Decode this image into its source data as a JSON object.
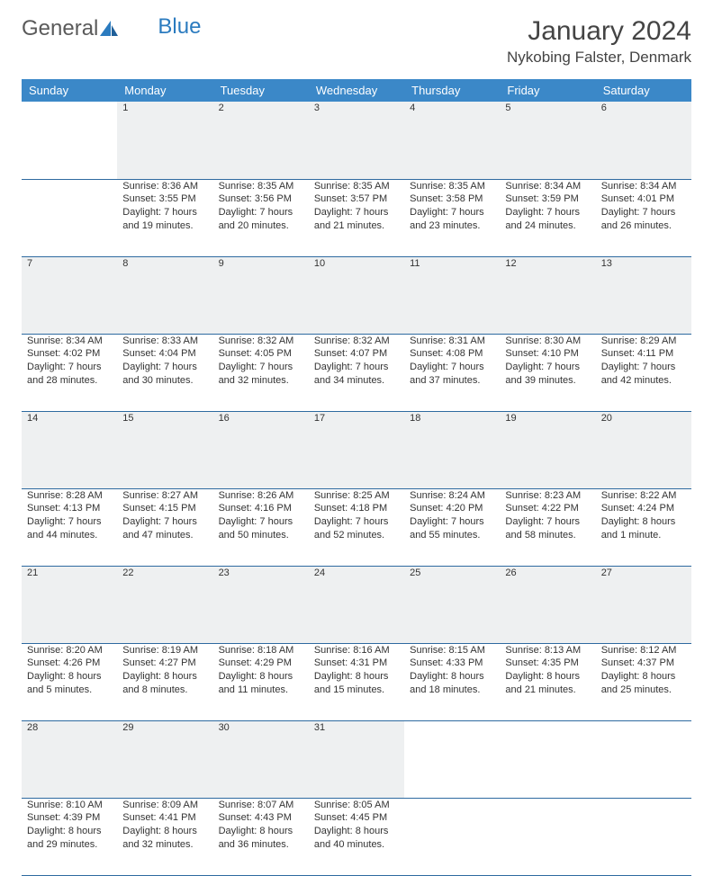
{
  "logo": {
    "text1": "General",
    "text2": "Blue"
  },
  "title": "January 2024",
  "subtitle": "Nykobing Falster, Denmark",
  "weekdays": [
    "Sunday",
    "Monday",
    "Tuesday",
    "Wednesday",
    "Thursday",
    "Friday",
    "Saturday"
  ],
  "colors": {
    "header_bg": "#3b88c8",
    "header_text": "#ffffff",
    "daynum_bg": "#eef0f1",
    "daynum_text": "#6a6a6a",
    "row_border": "#2e6aa0",
    "body_text": "#333333",
    "logo_gray": "#5a5a5a",
    "logo_blue": "#2b7bbf"
  },
  "weeks": [
    [
      null,
      {
        "n": "1",
        "sr": "8:36 AM",
        "ss": "3:55 PM",
        "dl": "7 hours and 19 minutes."
      },
      {
        "n": "2",
        "sr": "8:35 AM",
        "ss": "3:56 PM",
        "dl": "7 hours and 20 minutes."
      },
      {
        "n": "3",
        "sr": "8:35 AM",
        "ss": "3:57 PM",
        "dl": "7 hours and 21 minutes."
      },
      {
        "n": "4",
        "sr": "8:35 AM",
        "ss": "3:58 PM",
        "dl": "7 hours and 23 minutes."
      },
      {
        "n": "5",
        "sr": "8:34 AM",
        "ss": "3:59 PM",
        "dl": "7 hours and 24 minutes."
      },
      {
        "n": "6",
        "sr": "8:34 AM",
        "ss": "4:01 PM",
        "dl": "7 hours and 26 minutes."
      }
    ],
    [
      {
        "n": "7",
        "sr": "8:34 AM",
        "ss": "4:02 PM",
        "dl": "7 hours and 28 minutes."
      },
      {
        "n": "8",
        "sr": "8:33 AM",
        "ss": "4:04 PM",
        "dl": "7 hours and 30 minutes."
      },
      {
        "n": "9",
        "sr": "8:32 AM",
        "ss": "4:05 PM",
        "dl": "7 hours and 32 minutes."
      },
      {
        "n": "10",
        "sr": "8:32 AM",
        "ss": "4:07 PM",
        "dl": "7 hours and 34 minutes."
      },
      {
        "n": "11",
        "sr": "8:31 AM",
        "ss": "4:08 PM",
        "dl": "7 hours and 37 minutes."
      },
      {
        "n": "12",
        "sr": "8:30 AM",
        "ss": "4:10 PM",
        "dl": "7 hours and 39 minutes."
      },
      {
        "n": "13",
        "sr": "8:29 AM",
        "ss": "4:11 PM",
        "dl": "7 hours and 42 minutes."
      }
    ],
    [
      {
        "n": "14",
        "sr": "8:28 AM",
        "ss": "4:13 PM",
        "dl": "7 hours and 44 minutes."
      },
      {
        "n": "15",
        "sr": "8:27 AM",
        "ss": "4:15 PM",
        "dl": "7 hours and 47 minutes."
      },
      {
        "n": "16",
        "sr": "8:26 AM",
        "ss": "4:16 PM",
        "dl": "7 hours and 50 minutes."
      },
      {
        "n": "17",
        "sr": "8:25 AM",
        "ss": "4:18 PM",
        "dl": "7 hours and 52 minutes."
      },
      {
        "n": "18",
        "sr": "8:24 AM",
        "ss": "4:20 PM",
        "dl": "7 hours and 55 minutes."
      },
      {
        "n": "19",
        "sr": "8:23 AM",
        "ss": "4:22 PM",
        "dl": "7 hours and 58 minutes."
      },
      {
        "n": "20",
        "sr": "8:22 AM",
        "ss": "4:24 PM",
        "dl": "8 hours and 1 minute."
      }
    ],
    [
      {
        "n": "21",
        "sr": "8:20 AM",
        "ss": "4:26 PM",
        "dl": "8 hours and 5 minutes."
      },
      {
        "n": "22",
        "sr": "8:19 AM",
        "ss": "4:27 PM",
        "dl": "8 hours and 8 minutes."
      },
      {
        "n": "23",
        "sr": "8:18 AM",
        "ss": "4:29 PM",
        "dl": "8 hours and 11 minutes."
      },
      {
        "n": "24",
        "sr": "8:16 AM",
        "ss": "4:31 PM",
        "dl": "8 hours and 15 minutes."
      },
      {
        "n": "25",
        "sr": "8:15 AM",
        "ss": "4:33 PM",
        "dl": "8 hours and 18 minutes."
      },
      {
        "n": "26",
        "sr": "8:13 AM",
        "ss": "4:35 PM",
        "dl": "8 hours and 21 minutes."
      },
      {
        "n": "27",
        "sr": "8:12 AM",
        "ss": "4:37 PM",
        "dl": "8 hours and 25 minutes."
      }
    ],
    [
      {
        "n": "28",
        "sr": "8:10 AM",
        "ss": "4:39 PM",
        "dl": "8 hours and 29 minutes."
      },
      {
        "n": "29",
        "sr": "8:09 AM",
        "ss": "4:41 PM",
        "dl": "8 hours and 32 minutes."
      },
      {
        "n": "30",
        "sr": "8:07 AM",
        "ss": "4:43 PM",
        "dl": "8 hours and 36 minutes."
      },
      {
        "n": "31",
        "sr": "8:05 AM",
        "ss": "4:45 PM",
        "dl": "8 hours and 40 minutes."
      },
      null,
      null,
      null
    ]
  ],
  "labels": {
    "sunrise": "Sunrise: ",
    "sunset": "Sunset: ",
    "daylight": "Daylight: "
  }
}
